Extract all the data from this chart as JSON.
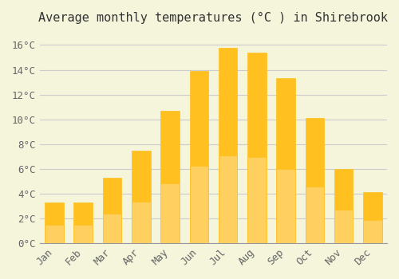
{
  "title": "Average monthly temperatures (°C ) in Shirebrook",
  "months": [
    "Jan",
    "Feb",
    "Mar",
    "Apr",
    "May",
    "Jun",
    "Jul",
    "Aug",
    "Sep",
    "Oct",
    "Nov",
    "Dec"
  ],
  "temperatures": [
    3.3,
    3.3,
    5.3,
    7.5,
    10.7,
    13.9,
    15.8,
    15.4,
    13.3,
    10.1,
    6.0,
    4.1
  ],
  "bar_color_top": "#FFC020",
  "bar_color_bottom": "#FFD060",
  "ylim": [
    0,
    17
  ],
  "yticks": [
    0,
    2,
    4,
    6,
    8,
    10,
    12,
    14,
    16
  ],
  "background_color": "#F5F5DC",
  "grid_color": "#CCCCCC",
  "title_fontsize": 11,
  "tick_fontsize": 9,
  "font_family": "monospace"
}
